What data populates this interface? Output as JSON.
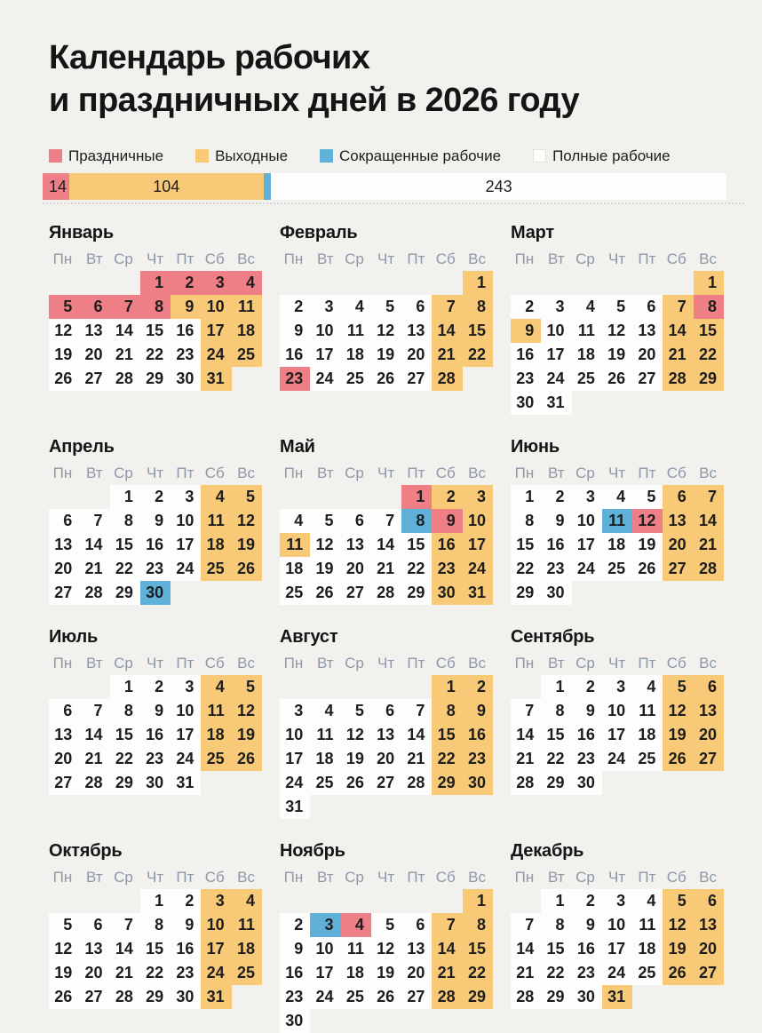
{
  "header": {
    "title_line1": "Календарь рабочих",
    "title_line2": "и праздничных дней в 2026 году"
  },
  "legend": {
    "items": [
      {
        "id": "holiday",
        "label": "Праздничные"
      },
      {
        "id": "weekend",
        "label": "Выходные"
      },
      {
        "id": "short",
        "label": "Сокращенные рабочие"
      },
      {
        "id": "work",
        "label": "Полные рабочие"
      }
    ]
  },
  "colors": {
    "holiday": "#ee7f86",
    "weekend": "#f8ca78",
    "short": "#5fb1da",
    "work": "#fdfdfd",
    "background": "#f2f1ee",
    "weekday_header_text": "#8d98a8",
    "day_text": "#1d1d1d"
  },
  "chart_data": {
    "type": "bar",
    "stacked": true,
    "total": 365,
    "series": [
      {
        "id": "holiday",
        "name": "Праздничные",
        "value": 14,
        "color": "#ee7f86"
      },
      {
        "id": "weekend",
        "name": "Выходные",
        "value": 104,
        "color": "#f8ca78"
      },
      {
        "id": "short",
        "name": "Сокращенные рабочие",
        "value": 4,
        "color": "#5fb1da"
      },
      {
        "id": "work",
        "name": "Полные рабочие",
        "value": 243,
        "color": "#fdfdfd"
      }
    ]
  },
  "weekdays": [
    "Пн",
    "Вт",
    "Ср",
    "Чт",
    "Пт",
    "Сб",
    "Вс"
  ],
  "months": [
    {
      "id": "january",
      "name": "Январь",
      "start": 3,
      "days": 31,
      "holidays": [
        1,
        2,
        3,
        4,
        5,
        6,
        7,
        8
      ],
      "short": [],
      "weekends": [
        9,
        10,
        11,
        17,
        18,
        24,
        25,
        31
      ]
    },
    {
      "id": "february",
      "name": "Февраль",
      "start": 6,
      "days": 28,
      "holidays": [
        23
      ],
      "short": [],
      "weekends": [
        1,
        7,
        8,
        14,
        15,
        21,
        22,
        28
      ]
    },
    {
      "id": "march",
      "name": "Март",
      "start": 6,
      "days": 31,
      "holidays": [
        8
      ],
      "short": [],
      "weekends": [
        1,
        7,
        9,
        14,
        15,
        21,
        22,
        28,
        29
      ]
    },
    {
      "id": "april",
      "name": "Апрель",
      "start": 2,
      "days": 30,
      "holidays": [],
      "short": [
        30
      ],
      "weekends": [
        4,
        5,
        11,
        12,
        18,
        19,
        25,
        26
      ]
    },
    {
      "id": "may",
      "name": "Май",
      "start": 4,
      "days": 31,
      "holidays": [
        1,
        9
      ],
      "short": [
        8
      ],
      "weekends": [
        2,
        3,
        10,
        11,
        16,
        17,
        23,
        24,
        30,
        31
      ]
    },
    {
      "id": "june",
      "name": "Июнь",
      "start": 0,
      "days": 30,
      "holidays": [
        12
      ],
      "short": [
        11
      ],
      "weekends": [
        6,
        7,
        13,
        14,
        20,
        21,
        27,
        28
      ]
    },
    {
      "id": "july",
      "name": "Июль",
      "start": 2,
      "days": 31,
      "holidays": [],
      "short": [],
      "weekends": [
        4,
        5,
        11,
        12,
        18,
        19,
        25,
        26
      ]
    },
    {
      "id": "august",
      "name": "Август",
      "start": 5,
      "days": 31,
      "holidays": [],
      "short": [],
      "weekends": [
        1,
        2,
        8,
        9,
        15,
        16,
        22,
        23,
        29,
        30
      ]
    },
    {
      "id": "september",
      "name": "Сентябрь",
      "start": 1,
      "days": 30,
      "holidays": [],
      "short": [],
      "weekends": [
        5,
        6,
        12,
        13,
        19,
        20,
        26,
        27
      ]
    },
    {
      "id": "october",
      "name": "Октябрь",
      "start": 3,
      "days": 31,
      "holidays": [],
      "short": [],
      "weekends": [
        3,
        4,
        10,
        11,
        17,
        18,
        24,
        25,
        31
      ]
    },
    {
      "id": "november",
      "name": "Ноябрь",
      "start": 6,
      "days": 30,
      "holidays": [
        4
      ],
      "short": [
        3
      ],
      "weekends": [
        1,
        7,
        8,
        14,
        15,
        21,
        22,
        28,
        29
      ]
    },
    {
      "id": "december",
      "name": "Декабрь",
      "start": 1,
      "days": 31,
      "holidays": [],
      "short": [],
      "weekends": [
        5,
        6,
        12,
        13,
        19,
        20,
        26,
        27,
        31
      ]
    }
  ]
}
